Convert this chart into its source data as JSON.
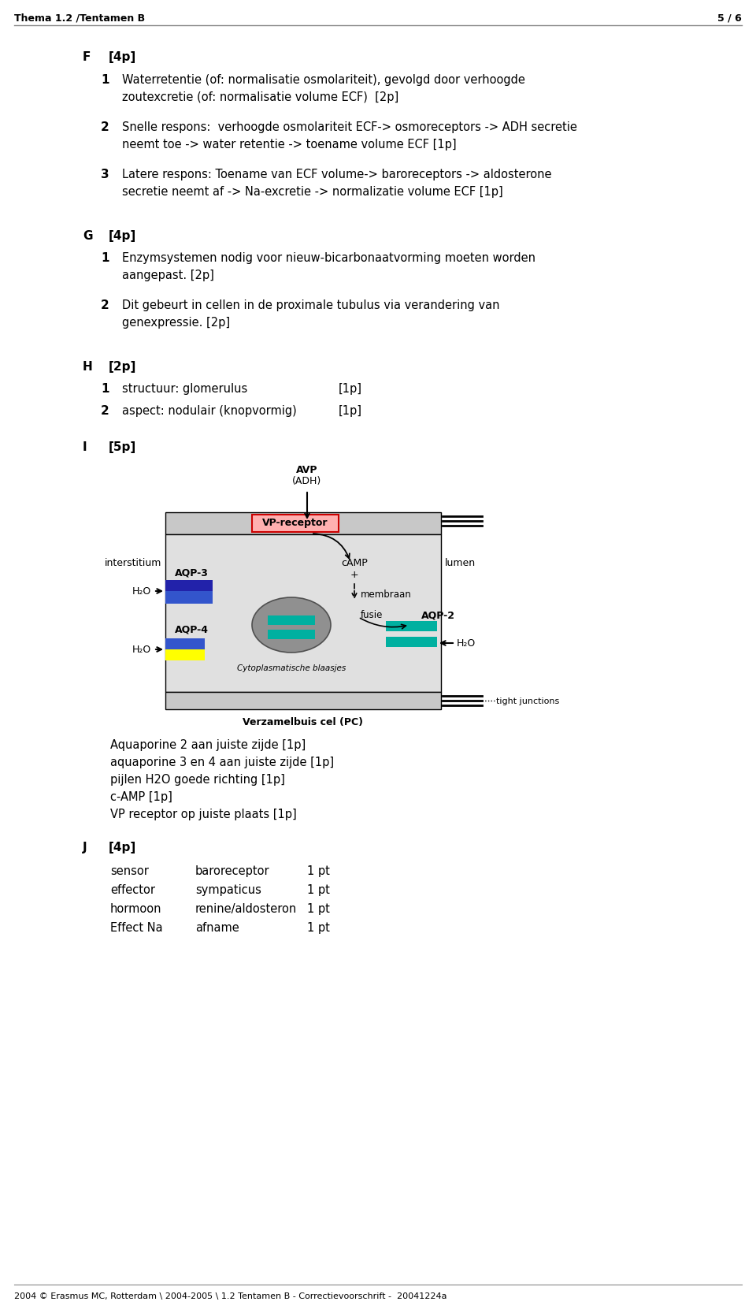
{
  "header_left": "Thema 1.2 /Tentamen B",
  "header_right": "5 / 6",
  "footer": "2004 © Erasmus MC, Rotterdam \\ 2004-2005 \\ 1.2 Tentamen B - Correctievoorschrift -  20041224a",
  "section_F": {
    "label": "F",
    "points": "[4p]",
    "items": [
      {
        "num": "1",
        "line1": "Waterretentie (of: normalisatie osmolariteit), gevolgd door verhoogde",
        "line2": "zoutexcretie (of: normalisatie volume ECF)  [2p]"
      },
      {
        "num": "2",
        "line1": "Snelle respons:  verhoogde osmolariteit ECF-> osmoreceptors -> ADH secretie",
        "line2": "neemt toe -> water retentie -> toename volume ECF [1p]"
      },
      {
        "num": "3",
        "line1": "Latere respons: Toename van ECF volume-> baroreceptors -> aldosterone",
        "line2": "secretie neemt af -> Na-excretie -> normalizatie volume ECF [1p]"
      }
    ]
  },
  "section_G": {
    "label": "G",
    "points": "[4p]",
    "items": [
      {
        "num": "1",
        "line1": "Enzymsystemen nodig voor nieuw-bicarbonaatvorming moeten worden",
        "line2": "aangepast. [2p]"
      },
      {
        "num": "2",
        "line1": "Dit gebeurt in cellen in de proximale tubulus via verandering van",
        "line2": "genexpressie. [2p]"
      }
    ]
  },
  "section_H": {
    "label": "H",
    "points": "[2p]",
    "items": [
      {
        "num": "1",
        "text": "structuur: glomerulus",
        "pts": "[1p]"
      },
      {
        "num": "2",
        "text": "aspect: nodulair (knopvormig)",
        "pts": "[1p]"
      }
    ]
  },
  "section_I": {
    "label": "I",
    "points": "[5p]",
    "caption_items": [
      "Aquaporine 2 aan juiste zijde [1p]",
      "aquaporine 3 en 4 aan juiste zijde [1p]",
      "pijlen H2O goede richting [1p]",
      "c-AMP [1p]",
      "VP receptor op juiste plaats [1p]"
    ]
  },
  "section_J": {
    "label": "J",
    "points": "[4p]",
    "rows": [
      {
        "col1": "sensor",
        "col2": "baroreceptor",
        "col3": "1 pt"
      },
      {
        "col1": "effector",
        "col2": "sympaticus",
        "col3": "1 pt"
      },
      {
        "col1": "hormoon",
        "col2": "renine/aldosteron",
        "col3": "1 pt"
      },
      {
        "col1": "Effect Na",
        "col2": "afname",
        "col3": "1 pt"
      }
    ]
  },
  "diagram": {
    "cell_bg": "#e8e8e8",
    "cell_bg2": "#d0d0d0",
    "vp_box_color": "#ffb0b0",
    "vp_box_edge": "#cc0000",
    "aqp3_blue": "#4040cc",
    "aqp3_dark": "#000080",
    "aqp4_blue": "#4040cc",
    "aqp4_yellow": "#ffff00",
    "aqp2_teal": "#00b0a0",
    "ellipse_color": "#909090"
  }
}
